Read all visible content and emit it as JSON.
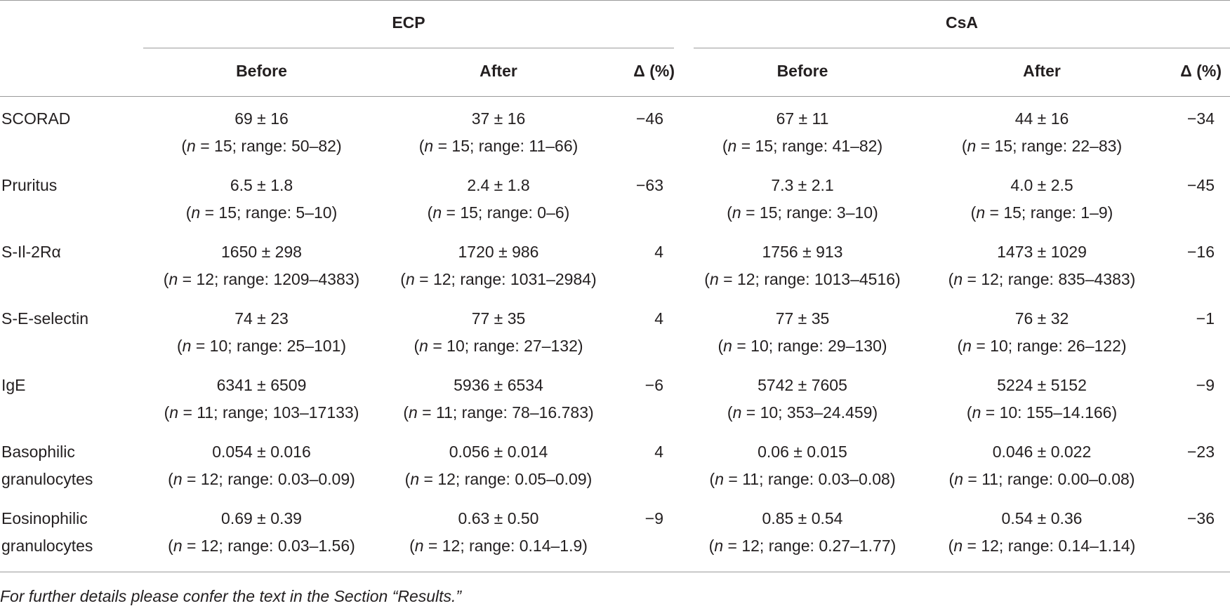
{
  "header": {
    "groups": [
      "ECP",
      "CsA"
    ],
    "columns": [
      "Before",
      "After",
      "Δ (%)",
      "Before",
      "After",
      "Δ (%)"
    ]
  },
  "rows": [
    {
      "label": [
        "SCORAD"
      ],
      "cells": [
        {
          "mean": "69 ± 16",
          "n": "n",
          "detail": " = 15; range: 50–82)"
        },
        {
          "mean": "37 ± 16",
          "n": "n",
          "detail": " = 15; range: 11–66)"
        },
        {
          "delta": "−46"
        },
        {
          "mean": "67 ± 11",
          "n": "n",
          "detail": " = 15; range: 41–82)"
        },
        {
          "mean": "44 ± 16",
          "n": "n",
          "detail": " = 15; range: 22–83)"
        },
        {
          "delta": "−34"
        }
      ]
    },
    {
      "label": [
        "Pruritus"
      ],
      "cells": [
        {
          "mean": "6.5 ± 1.8",
          "n": "n",
          "detail": " = 15; range: 5–10)"
        },
        {
          "mean": "2.4 ± 1.8",
          "n": "n",
          "detail": " = 15; range: 0–6)"
        },
        {
          "delta": "−63"
        },
        {
          "mean": "7.3 ± 2.1",
          "n": "n",
          "detail": " = 15; range: 3–10)"
        },
        {
          "mean": "4.0 ± 2.5",
          "n": "n",
          "detail": " = 15; range: 1–9)"
        },
        {
          "delta": "−45"
        }
      ]
    },
    {
      "label": [
        "S-Il-2Rα"
      ],
      "cells": [
        {
          "mean": "1650 ± 298",
          "n": "n",
          "detail": " = 12; range: 1209–4383)"
        },
        {
          "mean": "1720 ± 986",
          "n": "n",
          "detail": " = 12; range: 1031–2984)"
        },
        {
          "delta": "4"
        },
        {
          "mean": "1756 ± 913",
          "n": "n",
          "detail": " = 12; range: 1013–4516)"
        },
        {
          "mean": "1473 ± 1029",
          "n": "n",
          "detail": " = 12; range: 835–4383)"
        },
        {
          "delta": "−16"
        }
      ]
    },
    {
      "label": [
        "S-E-selectin"
      ],
      "cells": [
        {
          "mean": "74 ± 23",
          "n": "n",
          "detail": " = 10; range: 25–101)"
        },
        {
          "mean": "77 ± 35",
          "n": "n",
          "detail": " = 10; range: 27–132)"
        },
        {
          "delta": "4"
        },
        {
          "mean": "77 ± 35",
          "n": "n",
          "detail": " = 10; range: 29–130)"
        },
        {
          "mean": "76 ± 32",
          "n": "n",
          "detail": " = 10; range: 26–122)"
        },
        {
          "delta": "−1"
        }
      ]
    },
    {
      "label": [
        "IgE"
      ],
      "cells": [
        {
          "mean": "6341 ± 6509",
          "n": "n",
          "detail": " = 11; range; 103–17133)"
        },
        {
          "mean": "5936 ± 6534",
          "n": "n",
          "detail": " = 11; range: 78–16.783)"
        },
        {
          "delta": "−6"
        },
        {
          "mean": "5742 ± 7605",
          "n": "n",
          "detail": " = 10; 353–24.459)"
        },
        {
          "mean": "5224 ± 5152",
          "n": "n",
          "detail": " = 10: 155–14.166)"
        },
        {
          "delta": "−9"
        }
      ]
    },
    {
      "label": [
        "Basophilic",
        "granulocytes"
      ],
      "cells": [
        {
          "mean": "0.054 ± 0.016",
          "n": "n",
          "detail": " = 12; range: 0.03–0.09)"
        },
        {
          "mean": "0.056 ± 0.014",
          "n": "n",
          "detail": " = 12; range: 0.05–0.09)"
        },
        {
          "delta": "4"
        },
        {
          "mean": "0.06 ± 0.015",
          "n": "n",
          "detail": " = 11; range: 0.03–0.08)"
        },
        {
          "mean": "0.046 ± 0.022",
          "n": "n",
          "detail": " = 11; range: 0.00–0.08)"
        },
        {
          "delta": "−23"
        }
      ]
    },
    {
      "label": [
        "Eosinophilic",
        "granulocytes"
      ],
      "cells": [
        {
          "mean": "0.69 ± 0.39",
          "n": "n",
          "detail": " = 12; range: 0.03–1.56)"
        },
        {
          "mean": "0.63 ± 0.50",
          "n": "n",
          "detail": " = 12; range: 0.14–1.9)"
        },
        {
          "delta": "−9"
        },
        {
          "mean": "0.85 ± 0.54",
          "n": "n",
          "detail": " = 12; range: 0.27–1.77)"
        },
        {
          "mean": "0.54 ± 0.36",
          "n": "n",
          "detail": " = 12; range: 0.14–1.14)"
        },
        {
          "delta": "−36"
        }
      ]
    }
  ],
  "footnote": "For further details please confer the text in the Section “Results.”"
}
